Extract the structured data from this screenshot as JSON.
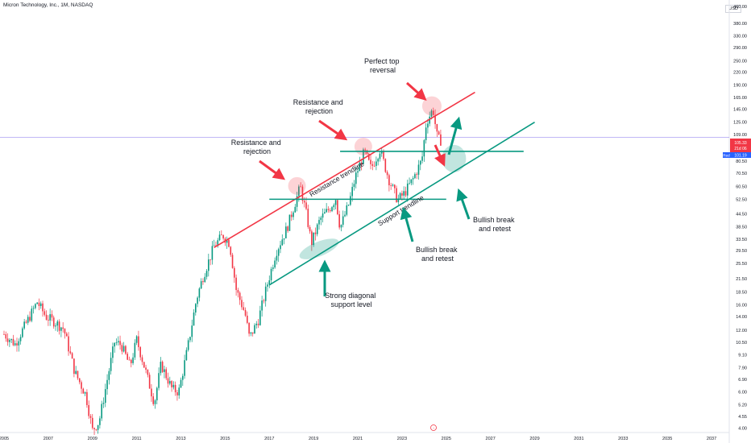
{
  "header": {
    "title": "Micron Technology, Inc., 1M, NASDAQ",
    "currency": "USD"
  },
  "price_tags": {
    "last": "105.33",
    "timer": "21d 06",
    "label": "Red",
    "value": "101.19"
  },
  "colors": {
    "up": "#089981",
    "down": "#f23645",
    "resistance": "#f23645",
    "support": "#089981",
    "horizontal": "#089981",
    "arrow_red": "#f23645",
    "arrow_green": "#089981"
  },
  "chart_data": {
    "type": "candlestick",
    "title": "Micron Technology, Inc., 1M, NASDAQ",
    "y_scale": "log",
    "ylim": [
      3.8,
      460
    ],
    "xlim": [
      2005.0,
      2037.8
    ],
    "y_ticks": [
      "460.00",
      "380.00",
      "330.00",
      "290.00",
      "250.00",
      "220.00",
      "190.00",
      "165.00",
      "145.00",
      "125.00",
      "109.00",
      "95.00",
      "80.50",
      "70.50",
      "60.50",
      "52.50",
      "44.50",
      "38.50",
      "33.50",
      "29.50",
      "25.50",
      "21.50",
      "18.50",
      "16.00",
      "14.00",
      "12.00",
      "10.50",
      "9.10",
      "7.90",
      "6.90",
      "6.00",
      "5.20",
      "4.55",
      "4.00"
    ],
    "x_ticks": [
      "2005",
      "2007",
      "2009",
      "2011",
      "2013",
      "2015",
      "2017",
      "2019",
      "2021",
      "2023",
      "2025",
      "2027",
      "2029",
      "2031",
      "2033",
      "2035",
      "2037"
    ],
    "price_anchors": [
      [
        2005.0,
        11.5
      ],
      [
        2005.5,
        10.3
      ],
      [
        2006.0,
        13.0
      ],
      [
        2006.5,
        16.5
      ],
      [
        2006.9,
        14.0
      ],
      [
        2007.3,
        13.2
      ],
      [
        2007.7,
        12.2
      ],
      [
        2008.2,
        7.5
      ],
      [
        2008.7,
        5.8
      ],
      [
        2009.0,
        3.9
      ],
      [
        2009.3,
        4.3
      ],
      [
        2009.7,
        7.2
      ],
      [
        2010.0,
        10.5
      ],
      [
        2010.3,
        10.2
      ],
      [
        2010.7,
        8.0
      ],
      [
        2011.0,
        10.8
      ],
      [
        2011.4,
        7.6
      ],
      [
        2011.8,
        5.3
      ],
      [
        2012.1,
        8.2
      ],
      [
        2012.6,
        6.2
      ],
      [
        2012.9,
        6.0
      ],
      [
        2013.3,
        9.8
      ],
      [
        2013.7,
        17.0
      ],
      [
        2014.0,
        22.0
      ],
      [
        2014.5,
        31.0
      ],
      [
        2014.9,
        35.0
      ],
      [
        2015.2,
        32.0
      ],
      [
        2015.5,
        19.0
      ],
      [
        2015.9,
        14.5
      ],
      [
        2016.1,
        11.0
      ],
      [
        2016.5,
        13.5
      ],
      [
        2016.9,
        20.0
      ],
      [
        2017.3,
        29.0
      ],
      [
        2017.8,
        38.0
      ],
      [
        2018.2,
        52.0
      ],
      [
        2018.4,
        60.5
      ],
      [
        2018.7,
        43.0
      ],
      [
        2018.9,
        32.0
      ],
      [
        2019.3,
        42.0
      ],
      [
        2019.7,
        47.0
      ],
      [
        2020.0,
        53.0
      ],
      [
        2020.2,
        38.0
      ],
      [
        2020.6,
        50.0
      ],
      [
        2020.9,
        68.0
      ],
      [
        2021.3,
        90.0
      ],
      [
        2021.6,
        74.0
      ],
      [
        2022.0,
        92.0
      ],
      [
        2022.4,
        66.0
      ],
      [
        2022.8,
        52.0
      ],
      [
        2023.1,
        56.0
      ],
      [
        2023.5,
        66.0
      ],
      [
        2023.9,
        82.0
      ],
      [
        2024.1,
        125.0
      ],
      [
        2024.4,
        145.0
      ],
      [
        2024.6,
        104.0
      ],
      [
        2024.8,
        101.19
      ]
    ],
    "resistance_trendline": {
      "label": "Resistance trendline",
      "points": [
        [
          2014.5,
          30.5
        ],
        [
          2026.3,
          175.0
        ]
      ]
    },
    "support_trendline": {
      "label": "Support trendline",
      "points": [
        [
          2017.0,
          20.0
        ],
        [
          2029.0,
          125.0
        ]
      ]
    },
    "horizontal_levels": [
      {
        "value": 52.5,
        "from": 2017.0,
        "to": 2025.0
      },
      {
        "value": 90.0,
        "from": 2020.2,
        "to": 2028.5
      }
    ],
    "annotations": [
      {
        "lines": [
          "Perfect top",
          "reversal"
        ]
      },
      {
        "lines": [
          "Resistance and",
          "rejection"
        ]
      },
      {
        "lines": [
          "Resistance and",
          "rejection"
        ]
      },
      {
        "lines": [
          "Strong diagonal",
          "support level"
        ]
      },
      {
        "lines": [
          "Bullish break",
          "and retest"
        ]
      },
      {
        "lines": [
          "Bullish break",
          "and retest"
        ]
      }
    ]
  }
}
